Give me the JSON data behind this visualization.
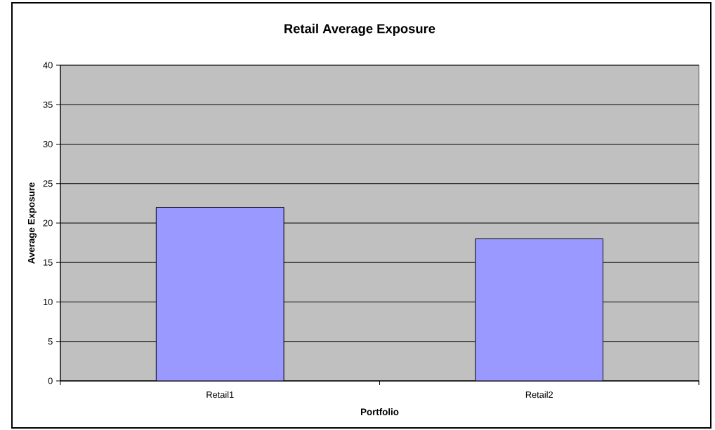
{
  "chart_data": {
    "type": "bar",
    "title": "Retail Average Exposure",
    "xlabel": "Portfolio",
    "ylabel": "Average Exposure",
    "categories": [
      "Retail1",
      "Retail2"
    ],
    "values": [
      22,
      18
    ],
    "color": "#9999ff",
    "ylim": [
      0,
      40
    ],
    "yticks": [
      0,
      5,
      10,
      15,
      20,
      25,
      30,
      35,
      40
    ],
    "grid": "y"
  }
}
